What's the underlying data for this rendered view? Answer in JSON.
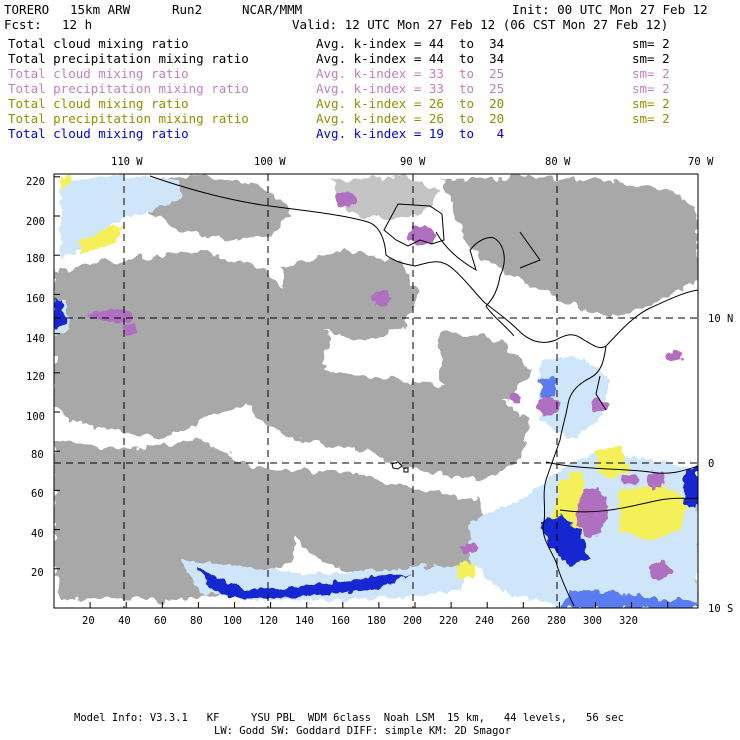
{
  "header": {
    "model": "TORERO",
    "resolution": "15km ARW",
    "run": "Run2",
    "org": "NCAR/MMM",
    "init": "Init: 00 UTC Mon 27 Feb 12",
    "fcst_label": "Fcst:",
    "fcst_value": "12 h",
    "valid": "Valid: 12 UTC Mon 27 Feb 12 (06 CST Mon 27 Feb 12)"
  },
  "legend": [
    {
      "field": "Total cloud mixing ratio",
      "kidx": "Avg. k-index =",
      "from": "44",
      "to_word": "to",
      "to": "34",
      "sm": "sm= 2",
      "color": "#000000"
    },
    {
      "field": "Total precipitation mixing ratio",
      "kidx": "Avg. k-index =",
      "from": "44",
      "to_word": "to",
      "to": "34",
      "sm": "sm= 2",
      "color": "#000000"
    },
    {
      "field": "Total cloud mixing ratio",
      "kidx": "Avg. k-index =",
      "from": "33",
      "to_word": "to",
      "to": "25",
      "sm": "sm= 2",
      "color": "#c080c0"
    },
    {
      "field": "Total precipitation mixing ratio",
      "kidx": "Avg. k-index =",
      "from": "33",
      "to_word": "to",
      "to": "25",
      "sm": "sm= 2",
      "color": "#c080c0"
    },
    {
      "field": "Total cloud mixing ratio",
      "kidx": "Avg. k-index =",
      "from": "26",
      "to_word": "to",
      "to": "20",
      "sm": "sm= 2",
      "color": "#909000"
    },
    {
      "field": "Total precipitation mixing ratio",
      "kidx": "Avg. k-index =",
      "from": "26",
      "to_word": "to",
      "to": "20",
      "sm": "sm= 2",
      "color": "#909000"
    },
    {
      "field": "Total cloud mixing ratio",
      "kidx": "Avg. k-index =",
      "from": "19",
      "to_word": "to",
      "to": "4",
      "sm": "",
      "color": "#0000e0"
    }
  ],
  "axes": {
    "lon_labels": [
      "110 W",
      "100 W",
      "90 W",
      "80 W",
      "70 W"
    ],
    "lat_labels": [
      "10 N",
      "0",
      "10 S"
    ],
    "y_ticks": [
      "220",
      "200",
      "180",
      "160",
      "140",
      "120",
      "100",
      "80",
      "60",
      "40",
      "20"
    ],
    "x_ticks": [
      "20",
      "40",
      "60",
      "80",
      "100",
      "120",
      "140",
      "160",
      "180",
      "200",
      "220",
      "240",
      "260",
      "280",
      "300",
      "320"
    ]
  },
  "footer": {
    "line1": "Model Info: V3.3.1   KF     YSU PBL  WDM 6class  Noah LSM  15 km,   44 levels,   56 sec",
    "line2": "LW: Godd SW: Goddard DIFF: simple KM: 2D Smagor"
  },
  "colors": {
    "gray_cloud": "#a8a8a8",
    "light_gray": "#c4c4c4",
    "purple": "#b070c0",
    "yellow": "#f4f05a",
    "light_blue": "#cfe6fa",
    "mid_blue": "#5a7cf0",
    "deep_blue": "#1228d0"
  }
}
